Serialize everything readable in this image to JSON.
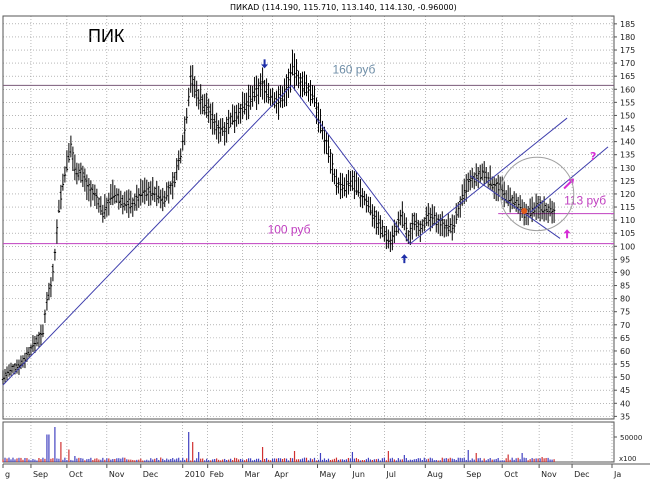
{
  "chart_data": {
    "type": "candlestick",
    "header": "ПИКАD (114.190, 115.710, 113.140, 114.130, -0.96000)",
    "ticker": "ПИК",
    "ylim": [
      34,
      188
    ],
    "yticks": [
      35,
      40,
      45,
      50,
      55,
      60,
      65,
      70,
      75,
      80,
      85,
      90,
      95,
      100,
      105,
      110,
      115,
      120,
      125,
      130,
      135,
      140,
      145,
      150,
      155,
      160,
      165,
      170,
      175,
      180,
      185
    ],
    "x_range": [
      0,
      560
    ],
    "x_ticks": [
      {
        "label": "g",
        "t": 0
      },
      {
        "label": "Sep",
        "t": 28
      },
      {
        "label": "Oct",
        "t": 64
      },
      {
        "label": "Nov",
        "t": 104
      },
      {
        "label": "Dec",
        "t": 138
      },
      {
        "label": "2010",
        "t": 180
      },
      {
        "label": "Feb",
        "t": 205
      },
      {
        "label": "Mar",
        "t": 240
      },
      {
        "label": "Apr",
        "t": 270
      },
      {
        "label": "May",
        "t": 315
      },
      {
        "label": "Jun",
        "t": 348
      },
      {
        "label": "Jul",
        "t": 382
      },
      {
        "label": "Aug",
        "t": 423
      },
      {
        "label": "Sep",
        "t": 462
      },
      {
        "label": "Oct",
        "t": 500
      },
      {
        "label": "Nov",
        "t": 537
      },
      {
        "label": "Dec",
        "t": 570
      },
      {
        "label": "Ja",
        "t": 610
      }
    ],
    "price_path": [
      [
        0,
        50
      ],
      [
        10,
        53
      ],
      [
        20,
        56
      ],
      [
        30,
        62
      ],
      [
        40,
        67
      ],
      [
        44,
        80
      ],
      [
        48,
        85
      ],
      [
        52,
        97
      ],
      [
        56,
        115
      ],
      [
        62,
        128
      ],
      [
        68,
        138
      ],
      [
        72,
        130
      ],
      [
        78,
        128
      ],
      [
        86,
        122
      ],
      [
        94,
        118
      ],
      [
        100,
        113
      ],
      [
        110,
        120
      ],
      [
        120,
        117
      ],
      [
        130,
        116
      ],
      [
        140,
        121
      ],
      [
        150,
        121
      ],
      [
        160,
        118
      ],
      [
        170,
        123
      ],
      [
        178,
        135
      ],
      [
        184,
        150
      ],
      [
        188,
        165
      ],
      [
        194,
        158
      ],
      [
        200,
        155
      ],
      [
        206,
        152
      ],
      [
        214,
        145
      ],
      [
        222,
        145
      ],
      [
        232,
        150
      ],
      [
        242,
        153
      ],
      [
        252,
        158
      ],
      [
        260,
        162
      ],
      [
        268,
        157
      ],
      [
        276,
        155
      ],
      [
        284,
        160
      ],
      [
        290,
        168
      ],
      [
        296,
        164
      ],
      [
        304,
        160
      ],
      [
        312,
        157
      ],
      [
        318,
        146
      ],
      [
        326,
        137
      ],
      [
        334,
        124
      ],
      [
        342,
        122
      ],
      [
        350,
        125
      ],
      [
        358,
        120
      ],
      [
        366,
        116
      ],
      [
        374,
        110
      ],
      [
        382,
        105
      ],
      [
        388,
        102
      ],
      [
        394,
        107
      ],
      [
        400,
        112
      ],
      [
        406,
        103
      ],
      [
        412,
        110
      ],
      [
        418,
        107
      ],
      [
        426,
        111
      ],
      [
        434,
        110
      ],
      [
        442,
        108
      ],
      [
        450,
        107
      ],
      [
        458,
        116
      ],
      [
        466,
        124
      ],
      [
        474,
        126
      ],
      [
        482,
        128
      ],
      [
        490,
        124
      ],
      [
        498,
        122
      ],
      [
        506,
        118
      ],
      [
        514,
        116
      ],
      [
        522,
        112
      ],
      [
        530,
        114
      ],
      [
        538,
        115
      ],
      [
        546,
        114
      ],
      [
        552,
        114.13
      ]
    ],
    "volume": {
      "label": "50000",
      "label_secondary": "x100",
      "ylim": [
        0,
        80000
      ],
      "spikes": [
        [
          22,
          4000
        ],
        [
          36,
          8000
        ],
        [
          45,
          55000
        ],
        [
          52,
          70000
        ],
        [
          58,
          40000
        ],
        [
          66,
          25000
        ],
        [
          72,
          12000
        ],
        [
          186,
          60000
        ],
        [
          190,
          40000
        ],
        [
          196,
          20000
        ],
        [
          260,
          30000
        ],
        [
          292,
          22000
        ],
        [
          318,
          18000
        ],
        [
          350,
          20000
        ],
        [
          386,
          22000
        ],
        [
          402,
          14000
        ],
        [
          466,
          24000
        ],
        [
          474,
          18000
        ],
        [
          506,
          15000
        ],
        [
          520,
          18000
        ],
        [
          540,
          10000
        ]
      ]
    },
    "levels": [
      {
        "label": "160 руб",
        "value": 161.5,
        "color": "#7a5a78",
        "label_color": "#6f8ea7"
      },
      {
        "label": "100 руб",
        "value": 101,
        "color": "#c040c0",
        "label_color": "#c040c0"
      },
      {
        "label": "113 руб",
        "value": 112.5,
        "color": "#c040c0",
        "label_color": "#c040c0",
        "t_start": 496
      }
    ],
    "trendlines": [
      {
        "from": [
          0,
          47
        ],
        "to": [
          289,
          161.5
        ],
        "color": "#3d3dac"
      },
      {
        "from": [
          289,
          161.5
        ],
        "to": [
          408,
          101
        ],
        "color": "#3d3dac"
      },
      {
        "from": [
          408,
          101
        ],
        "to": [
          565,
          149
        ],
        "color": "#3d3dac"
      },
      {
        "from": [
          468,
          127
        ],
        "to": [
          558,
          103
        ],
        "color": "#3d3dac"
      },
      {
        "from": [
          528,
          113
        ],
        "to": [
          606,
          138
        ],
        "color": "#3d3dac"
      }
    ],
    "annotations": [
      {
        "kind": "arrow-down",
        "t": 262,
        "value": 168,
        "color": "#1f2fa8"
      },
      {
        "kind": "arrow-up",
        "t": 402,
        "value": 97,
        "color": "#1f2fa8"
      },
      {
        "kind": "arrow-up",
        "t": 565,
        "value": 106.5,
        "color": "#d62cd6"
      },
      {
        "kind": "arrow-up-right",
        "t": 567,
        "value": 124,
        "color": "#d62cd6"
      },
      {
        "kind": "question",
        "label": "?",
        "t": 588,
        "value": 133,
        "color": "#d62cd6"
      },
      {
        "kind": "circle",
        "t": 535,
        "value": 120,
        "radius_units": 14,
        "color": "#a0a0a0"
      },
      {
        "kind": "dot",
        "t": 522,
        "value": 113.5,
        "color": "#e05a1a"
      }
    ],
    "colors": {
      "candles": "#000000",
      "grid": "#8c8c8c",
      "volume": "#4040c0",
      "volume_red": "#d03030",
      "background": "#ffffff"
    }
  }
}
